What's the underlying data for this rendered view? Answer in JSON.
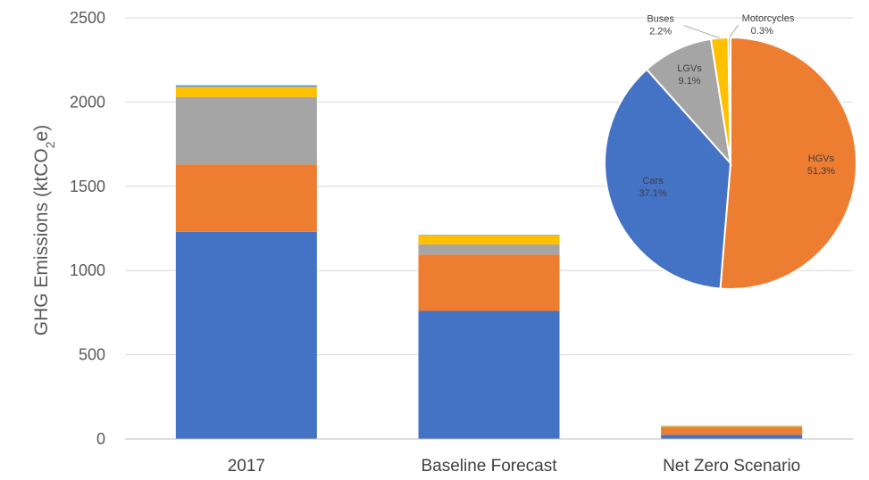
{
  "chart_data": [
    {
      "type": "bar",
      "stacked": true,
      "title": "",
      "xlabel": "",
      "ylabel": "GHG Emissions (ktCO₂e)",
      "ylabel_parts": {
        "main": "GHG Emissions (ktCO",
        "sub": "2",
        "end": "e)"
      },
      "ylim": [
        0,
        2500
      ],
      "yticks": [
        0,
        500,
        1000,
        1500,
        2000,
        2500
      ],
      "grid": true,
      "categories": [
        "2017",
        "Baseline Forecast",
        "Net Zero Scenario"
      ],
      "series": [
        {
          "color": "#4472C4",
          "values": [
            1230,
            760,
            25
          ]
        },
        {
          "color": "#ED7D31",
          "values": [
            400,
            335,
            45
          ]
        },
        {
          "color": "#A5A5A5",
          "values": [
            400,
            60,
            5
          ]
        },
        {
          "color": "#FFC000",
          "values": [
            60,
            55,
            5
          ]
        },
        {
          "color": "#5B9BD5",
          "values": [
            10,
            2,
            0
          ]
        }
      ]
    },
    {
      "type": "pie",
      "slices": [
        {
          "label": "HGVs",
          "pct_label": "51.3%",
          "value": 51.3,
          "color": "#ED7D31"
        },
        {
          "label": "Cars",
          "pct_label": "37.1%",
          "value": 37.1,
          "color": "#4472C4"
        },
        {
          "label": "LGVs",
          "pct_label": "9.1%",
          "value": 9.1,
          "color": "#A5A5A5"
        },
        {
          "label": "Buses",
          "pct_label": "2.2%",
          "value": 2.2,
          "color": "#FFC000"
        },
        {
          "label": "Motorcycles",
          "pct_label": "0.3%",
          "value": 0.3,
          "color": "#5B9BD5"
        }
      ]
    }
  ]
}
